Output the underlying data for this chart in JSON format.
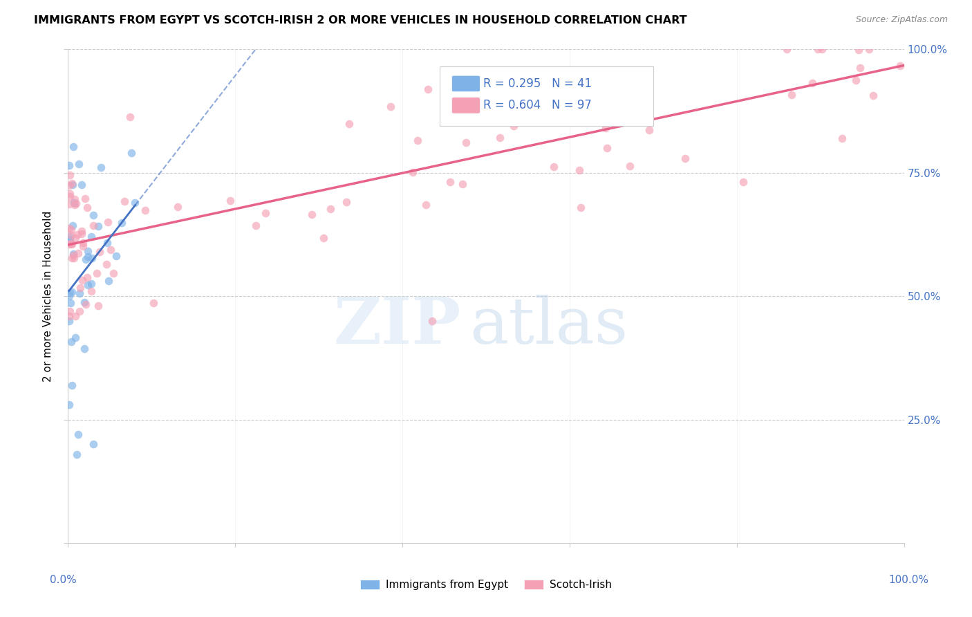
{
  "title": "IMMIGRANTS FROM EGYPT VS SCOTCH-IRISH 2 OR MORE VEHICLES IN HOUSEHOLD CORRELATION CHART",
  "source": "Source: ZipAtlas.com",
  "ylabel": "2 or more Vehicles in Household",
  "legend_label1": "Immigrants from Egypt",
  "legend_label2": "Scotch-Irish",
  "R1": 0.295,
  "N1": 41,
  "R2": 0.604,
  "N2": 97,
  "color_egypt": "#7fb3e8",
  "color_scotch": "#f4a0b5",
  "color_egypt_line": "#4472c4",
  "color_scotch_line": "#e8638a",
  "grid_color": "#cccccc",
  "title_fontsize": 11.5,
  "source_fontsize": 9,
  "label_fontsize": 11,
  "marker_size": 70,
  "marker_alpha": 0.65
}
